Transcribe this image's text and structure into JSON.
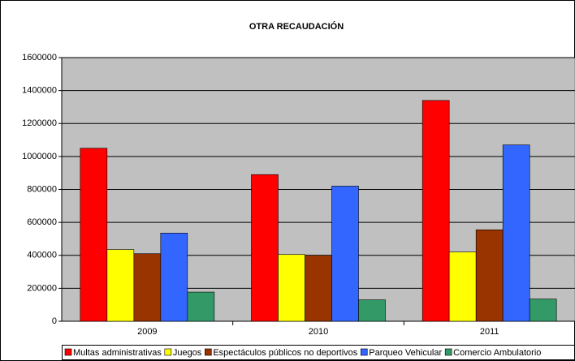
{
  "chart_data": {
    "type": "bar",
    "title": "OTRA RECAUDACIÓN",
    "categories": [
      "2009",
      "2010",
      "2011"
    ],
    "series": [
      {
        "name": "Multas administrativas",
        "color": "#ff0000",
        "values": [
          1050000,
          890000,
          1340000
        ]
      },
      {
        "name": "Juegos",
        "color": "#ffff00",
        "values": [
          435000,
          405000,
          420000
        ]
      },
      {
        "name": "Espectáculos públicos no deportivos",
        "color": "#993300",
        "values": [
          410000,
          400000,
          555000
        ]
      },
      {
        "name": "Parqueo Vehicular",
        "color": "#3366ff",
        "values": [
          535000,
          820000,
          1070000
        ]
      },
      {
        "name": "Comercio Ambulatorio",
        "color": "#339966",
        "values": [
          177000,
          130000,
          135000
        ]
      }
    ],
    "ylim": [
      0,
      1600000
    ],
    "yticks": [
      0,
      200000,
      400000,
      600000,
      800000,
      1000000,
      1200000,
      1400000,
      1600000
    ],
    "grid": true,
    "legend": "bottom"
  }
}
